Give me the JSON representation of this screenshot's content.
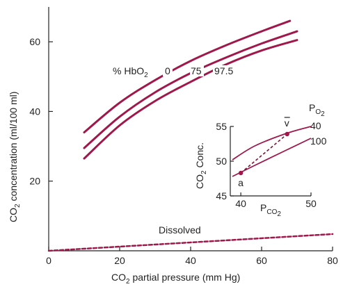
{
  "chart_data": [
    {
      "type": "line",
      "xlabel_main": "CO",
      "xlabel_sub": "2",
      "xlabel_rest": " partial pressure (mm Hg)",
      "ylabel_main": "CO",
      "ylabel_sub": "2",
      "ylabel_rest": " concentration (ml/100 ml)",
      "xlim": [
        0,
        80
      ],
      "ylim": [
        0,
        70
      ],
      "x_ticks": [
        0,
        20,
        40,
        60,
        80
      ],
      "y_ticks": [
        20,
        40,
        60
      ],
      "hbo2_prefix": "% HbO",
      "hbo2_sub": "2",
      "grid": false,
      "colors": {
        "curve": "#a0174a",
        "dissolved": "#a0174a",
        "axis": "#222222"
      },
      "series": [
        {
          "name": "0",
          "style": "solid",
          "x": [
            10,
            20,
            30,
            40,
            50,
            60,
            68
          ],
          "y": [
            34,
            42.5,
            49,
            54.5,
            59,
            63,
            66
          ]
        },
        {
          "name": "75",
          "style": "solid",
          "x": [
            10,
            20,
            30,
            40,
            50,
            60,
            70
          ],
          "y": [
            29.5,
            38.5,
            45.5,
            51,
            55.5,
            59.5,
            63
          ]
        },
        {
          "name": "97.5",
          "style": "solid",
          "x": [
            10,
            20,
            30,
            40,
            50,
            60,
            70
          ],
          "y": [
            26.5,
            36,
            43,
            48.5,
            53.5,
            57.5,
            60.5
          ]
        },
        {
          "name": "Dissolved",
          "style": "dashed",
          "x": [
            0,
            20,
            40,
            60,
            80
          ],
          "y": [
            0,
            1.2,
            2.4,
            3.6,
            4.8
          ]
        }
      ]
    },
    {
      "type": "line",
      "xlabel_main": "P",
      "xlabel_sub": "CO",
      "xlabel_subsub": "2",
      "ylabel_main": "CO",
      "ylabel_sub": "2",
      "ylabel_rest": " Conc.",
      "xlim": [
        38.5,
        50
      ],
      "ylim": [
        45,
        55
      ],
      "x_ticks": [
        40,
        50
      ],
      "y_ticks": [
        45,
        50,
        55
      ],
      "legend_title_main": "P",
      "legend_title_sub": "O",
      "legend_title_subsub": "2",
      "series": [
        {
          "name": "40",
          "x": [
            38.8,
            42,
            46.5,
            50
          ],
          "y": [
            50.2,
            52.2,
            54.0,
            55.0
          ]
        },
        {
          "name": "100",
          "x": [
            38.8,
            42,
            46.5,
            50
          ],
          "y": [
            47.8,
            49.4,
            51.6,
            53.3
          ]
        }
      ],
      "points": [
        {
          "label": "a",
          "x": 40,
          "y": 48.3
        },
        {
          "label": "v",
          "x": 46.6,
          "y": 53.9
        }
      ],
      "dashed_segment": {
        "from": "a",
        "to": "v"
      }
    }
  ]
}
